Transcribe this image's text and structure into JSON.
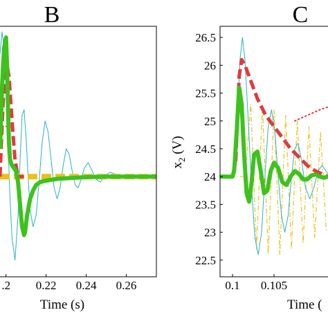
{
  "chart_data": [
    {
      "type": "line",
      "panel_label": "B",
      "xlabel": "Time (s)",
      "ylabel": "",
      "xlim": [
        0.197,
        0.275
      ],
      "ylim": [
        22.2,
        26.7
      ],
      "xticks": [
        0.2,
        0.22,
        0.24,
        0.26
      ],
      "xtick_labels": [
        ".2",
        "0.22",
        "0.24",
        "0.26"
      ],
      "grid": false,
      "series": [
        {
          "color": "#2ab0c6",
          "style": "solid",
          "width": 1,
          "x": [
            0.197,
            0.198,
            0.199,
            0.2,
            0.201,
            0.202,
            0.203,
            0.2045,
            0.206,
            0.207,
            0.208,
            0.209,
            0.21,
            0.211,
            0.212,
            0.2135,
            0.215,
            0.2165,
            0.218,
            0.2195,
            0.221,
            0.2225,
            0.224,
            0.2255,
            0.227,
            0.2285,
            0.23,
            0.2315,
            0.233,
            0.2345,
            0.236,
            0.2375,
            0.239,
            0.241,
            0.243,
            0.245,
            0.247,
            0.249,
            0.252,
            0.256,
            0.26,
            0.265,
            0.27,
            0.275
          ],
          "y": [
            26.2,
            26.6,
            26.3,
            25.6,
            24.6,
            23.6,
            22.9,
            22.5,
            23.3,
            24.3,
            25.1,
            25.2,
            24.7,
            24.0,
            23.4,
            23.1,
            23.3,
            23.9,
            24.6,
            25.0,
            24.8,
            24.3,
            23.8,
            23.6,
            23.8,
            24.2,
            24.5,
            24.4,
            24.1,
            23.85,
            23.8,
            23.95,
            24.15,
            24.25,
            24.1,
            23.95,
            23.9,
            24.0,
            24.08,
            24.02,
            23.98,
            24.02,
            24.0,
            24.0
          ]
        },
        {
          "color": "#e8c21a",
          "style": "dashed",
          "width": 8,
          "x": [
            0.197,
            0.2005,
            0.2015,
            0.21,
            0.22,
            0.23,
            0.24,
            0.25,
            0.26,
            0.275
          ],
          "y": [
            24.0,
            24.0,
            24.0,
            24.0,
            24.0,
            24.0,
            24.0,
            24.0,
            24.0,
            24.0
          ]
        },
        {
          "color": "#e03a3e",
          "style": "dashed",
          "width": 5,
          "x": [
            0.197,
            0.1985,
            0.2,
            0.2015,
            0.203,
            0.2045,
            0.206,
            0.2075,
            0.209
          ],
          "y": [
            24.0,
            25.3,
            26.1,
            25.8,
            25.0,
            24.3,
            24.0,
            24.0,
            24.0
          ]
        },
        {
          "color": "#e03a3e",
          "style": "dotted",
          "width": 2,
          "x": [
            0.2,
            0.2035
          ],
          "y": [
            24.9,
            24.9
          ]
        },
        {
          "color": "#3ec21d",
          "style": "solid",
          "width": 6,
          "x": [
            0.197,
            0.198,
            0.199,
            0.2,
            0.2005,
            0.201,
            0.2015,
            0.202,
            0.203,
            0.204,
            0.205,
            0.206,
            0.207,
            0.208,
            0.209,
            0.2095,
            0.2105,
            0.212,
            0.2135,
            0.215,
            0.217,
            0.219,
            0.222,
            0.226,
            0.23,
            0.235,
            0.24,
            0.25,
            0.26,
            0.275
          ],
          "y": [
            24.5,
            25.6,
            26.3,
            26.5,
            26.0,
            25.2,
            24.6,
            24.3,
            24.2,
            24.15,
            24.1,
            23.9,
            23.5,
            23.1,
            22.95,
            23.0,
            23.3,
            23.6,
            23.75,
            23.85,
            23.9,
            23.92,
            23.94,
            23.96,
            23.97,
            23.98,
            23.99,
            24.0,
            24.0,
            24.0
          ]
        }
      ]
    },
    {
      "type": "line",
      "panel_label": "C",
      "xlabel": "Time (",
      "ylabel": "x_2 (V)",
      "xlim": [
        0.0985,
        0.1115
      ],
      "ylim": [
        22.2,
        26.7
      ],
      "xticks": [
        0.1,
        0.105
      ],
      "xtick_labels": [
        "0.1",
        "0.105"
      ],
      "yticks": [
        22.5,
        23,
        23.5,
        24,
        24.5,
        25,
        25.5,
        26,
        26.5
      ],
      "ytick_labels": [
        "22.5",
        "23",
        "23.5",
        "24",
        "24.5",
        "25",
        "25.5",
        "26",
        "26.5"
      ],
      "grid": false,
      "series": [
        {
          "color": "#e8c21a",
          "style": "dashdot",
          "width": 1.2,
          "x": [
            0.0985,
            0.1,
            0.1015,
            0.1022,
            0.1029,
            0.1036,
            0.1043,
            0.105,
            0.1057,
            0.1064,
            0.1071,
            0.1078,
            0.1085,
            0.1092,
            0.1099,
            0.1106,
            0.1113
          ],
          "y": [
            24.0,
            24.0,
            24.0,
            25.3,
            22.7,
            25.3,
            22.6,
            25.2,
            22.6,
            25.1,
            22.7,
            25.0,
            22.8,
            24.9,
            22.9,
            24.8,
            23.0
          ]
        },
        {
          "color": "#2ab0c6",
          "style": "solid",
          "width": 1,
          "x": [
            0.0985,
            0.1,
            0.1003,
            0.1006,
            0.1009,
            0.1012,
            0.1015,
            0.1019,
            0.1023,
            0.1027,
            0.1031,
            0.1035,
            0.1039,
            0.1043,
            0.1047,
            0.1051,
            0.1055,
            0.1059,
            0.1063,
            0.1067,
            0.1071,
            0.1075,
            0.1079,
            0.1083,
            0.1088,
            0.1093,
            0.1098,
            0.1103,
            0.1108,
            0.1115
          ],
          "y": [
            24.0,
            24.0,
            24.1,
            25.0,
            26.1,
            26.5,
            26.1,
            25.0,
            23.8,
            22.9,
            22.6,
            23.0,
            24.0,
            24.9,
            25.2,
            24.8,
            24.0,
            23.3,
            23.0,
            23.3,
            24.0,
            24.5,
            24.6,
            24.3,
            23.8,
            23.6,
            23.8,
            24.1,
            24.2,
            24.05
          ]
        },
        {
          "color": "#e03a3e",
          "style": "dashed",
          "width": 5,
          "x": [
            0.0985,
            0.1,
            0.1004,
            0.1008,
            0.1011,
            0.1015,
            0.102,
            0.1025,
            0.103,
            0.104,
            0.105,
            0.106,
            0.107,
            0.108,
            0.109,
            0.11,
            0.1115
          ],
          "y": [
            24.0,
            24.0,
            24.3,
            25.8,
            26.1,
            26.0,
            25.8,
            25.6,
            25.4,
            25.1,
            24.9,
            24.7,
            24.5,
            24.35,
            24.2,
            24.1,
            24.0
          ]
        },
        {
          "color": "#e03a3e",
          "style": "dotted",
          "width": 2,
          "x": [
            0.1075,
            0.109,
            0.1105,
            0.1115
          ],
          "y": [
            25.0,
            25.1,
            25.2,
            25.25
          ]
        },
        {
          "color": "#3ec21d",
          "style": "solid",
          "width": 6,
          "x": [
            0.0985,
            0.1,
            0.1002,
            0.1005,
            0.1008,
            0.1011,
            0.1014,
            0.1017,
            0.102,
            0.1023,
            0.1026,
            0.103,
            0.1034,
            0.1038,
            0.1042,
            0.1046,
            0.105,
            0.1055,
            0.106,
            0.1065,
            0.107,
            0.1075,
            0.108,
            0.1085,
            0.109,
            0.1095,
            0.11,
            0.1105,
            0.111,
            0.1115
          ],
          "y": [
            24.0,
            24.0,
            24.1,
            24.8,
            25.6,
            25.3,
            24.4,
            23.7,
            23.55,
            23.9,
            24.4,
            24.45,
            24.1,
            23.7,
            23.75,
            24.1,
            24.25,
            24.15,
            23.9,
            23.85,
            24.0,
            24.1,
            24.05,
            23.95,
            23.95,
            24.02,
            24.04,
            24.0,
            23.98,
            24.0
          ]
        }
      ]
    }
  ]
}
